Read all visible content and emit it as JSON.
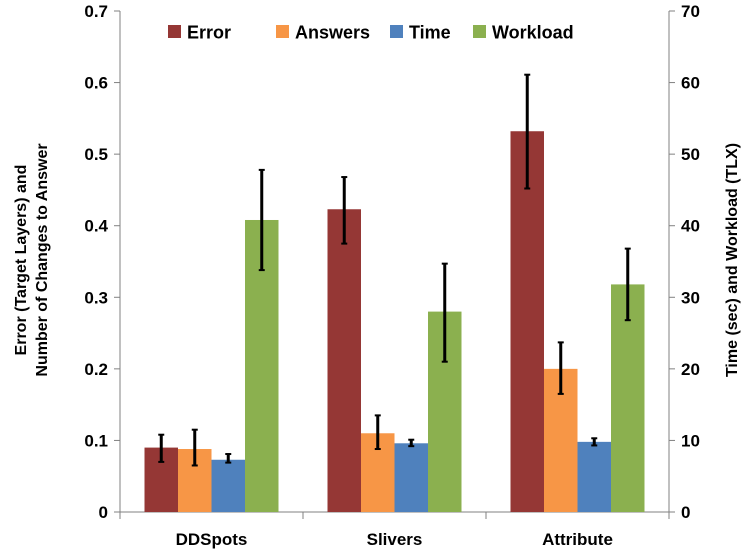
{
  "chart_data": {
    "type": "bar",
    "categories": [
      "DDSpots",
      "Slivers",
      "Attribute"
    ],
    "series": [
      {
        "name": "Error",
        "axis": "left",
        "color": "#953735",
        "values": [
          0.09,
          0.423,
          0.532
        ],
        "err_low": [
          0.07,
          0.375,
          0.452
        ],
        "err_high": [
          0.108,
          0.468,
          0.611
        ]
      },
      {
        "name": "Answers",
        "axis": "left",
        "color": "#F79646",
        "values": [
          0.088,
          0.11,
          0.2
        ],
        "err_low": [
          0.065,
          0.088,
          0.165
        ],
        "err_high": [
          0.115,
          0.135,
          0.237
        ]
      },
      {
        "name": "Time",
        "axis": "right",
        "color": "#4F81BD",
        "values": [
          7.3,
          9.6,
          9.8
        ],
        "err_low": [
          6.9,
          9.2,
          9.3
        ],
        "err_high": [
          8.1,
          10.1,
          10.3
        ]
      },
      {
        "name": "Workload",
        "axis": "right",
        "color": "#8BB04F",
        "values": [
          40.8,
          28,
          31.8
        ],
        "err_low": [
          33.8,
          21,
          26.8
        ],
        "err_high": [
          47.8,
          34.7,
          36.8
        ]
      }
    ],
    "y_left": {
      "label_line1": "Error (Target Layers) and",
      "label_line2": "Number of Changes to Answer",
      "min": 0,
      "max": 0.7,
      "ticks": [
        "0",
        "0.1",
        "0.2",
        "0.3",
        "0.4",
        "0.5",
        "0.6",
        "0.7"
      ]
    },
    "y_right": {
      "label": "Time (sec)  and Workload (TLX)",
      "min": 0,
      "max": 70,
      "ticks": [
        "0",
        "10",
        "20",
        "30",
        "40",
        "50",
        "60",
        "70"
      ]
    },
    "grid": false,
    "legend_position": "top"
  }
}
